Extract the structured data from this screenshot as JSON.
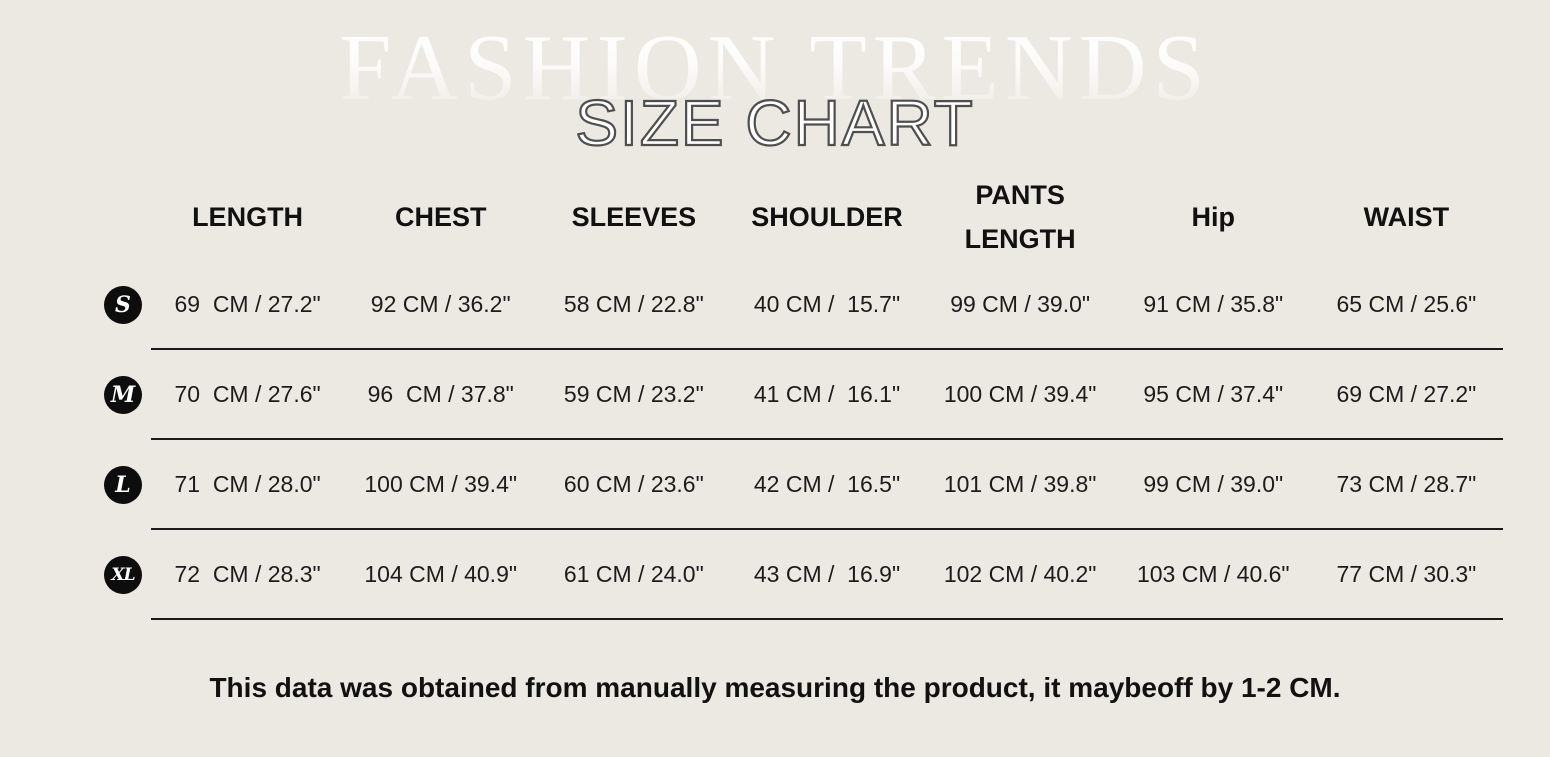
{
  "watermark": "FASHION TRENDS",
  "title": "SIZE CHART",
  "chart_data": {
    "type": "table",
    "title": "SIZE CHART",
    "columns": [
      "LENGTH",
      "CHEST",
      "SLEEVES",
      "SHOULDER",
      "PANTS LENGTH",
      "Hip",
      "WAIST"
    ],
    "rows": [
      {
        "size": "S",
        "cells": [
          "69  CM / 27.2\"",
          "92 CM / 36.2\"",
          "58 CM / 22.8\"",
          "40 CM /  15.7\"",
          "99 CM / 39.0\"",
          "91 CM / 35.8\"",
          "65 CM / 25.6\""
        ]
      },
      {
        "size": "M",
        "cells": [
          "70  CM / 27.6\"",
          "96  CM / 37.8\"",
          "59 CM / 23.2\"",
          "41 CM /  16.1\"",
          "100 CM / 39.4\"",
          "95 CM / 37.4\"",
          "69 CM / 27.2\""
        ]
      },
      {
        "size": "L",
        "cells": [
          "71  CM / 28.0\"",
          "100 CM / 39.4\"",
          "60 CM / 23.6\"",
          "42 CM /  16.5\"",
          "101 CM / 39.8\"",
          "99 CM / 39.0\"",
          "73 CM / 28.7\""
        ]
      },
      {
        "size": "XL",
        "cells": [
          "72  CM / 28.3\"",
          "104 CM / 40.9\"",
          "61 CM / 24.0\"",
          "43 CM /  16.9\"",
          "102 CM / 40.2\"",
          "103 CM / 40.6\"",
          "77 CM / 30.3\""
        ]
      }
    ],
    "units": "CM / inches"
  },
  "footnote": "This data was obtained from manually measuring the product, it maybeoff by 1-2 CM.",
  "colors": {
    "background": "#ece8e2",
    "text": "#161616",
    "badge_background": "#0d0d0d",
    "badge_text": "#ffffff",
    "divider": "#1a1a1a",
    "title_fill": "#ffffff",
    "title_outline": "#4f4f4f",
    "watermark": "#ffffff"
  }
}
